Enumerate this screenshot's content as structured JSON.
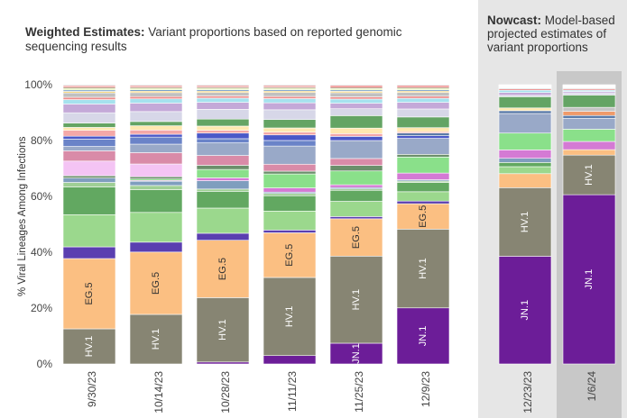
{
  "header": {
    "weighted_title_bold": "Weighted Estimates:",
    "weighted_title_rest": " Variant proportions based on reported genomic sequencing results",
    "nowcast_title_bold": "Nowcast:",
    "nowcast_title_rest": " Model-based projected estimates of variant proportions"
  },
  "colors": {
    "JN.1": "#6c1d98",
    "HV.1": "#878573",
    "EG.5": "#fbbf82",
    "nowcast_panel": "#e6e6e6",
    "selected_column": "#c8c8c8"
  },
  "chart_data": {
    "type": "bar",
    "stacked": true,
    "ylabel": "% Viral Lineages Among Infections",
    "ylim": [
      0,
      100
    ],
    "yticks": [
      "0%",
      "20%",
      "40%",
      "60%",
      "80%",
      "100%"
    ],
    "categories": [
      "9/30/23",
      "10/14/23",
      "10/28/23",
      "11/11/23",
      "11/25/23",
      "12/9/23",
      "12/23/23",
      "1/6/24"
    ],
    "nowcast_categories": [
      "12/23/23",
      "1/6/24"
    ],
    "selected_category": "1/6/24",
    "series": [
      {
        "name": "JN.1",
        "color": "#6c1d98",
        "values": [
          0,
          0,
          0.7,
          3,
          7.5,
          21,
          38.5,
          62
        ]
      },
      {
        "name": "HV.1",
        "color": "#878573",
        "values": [
          12,
          17.5,
          23,
          28,
          31.5,
          29.5,
          24.5,
          14.5
        ]
      },
      {
        "name": "EG.5",
        "color": "#fbbf82",
        "values": [
          24,
          22,
          20.5,
          16,
          13.5,
          9.5,
          5,
          2
        ]
      },
      {
        "color": "#5a3fb0",
        "values": [
          4,
          3.5,
          2.5,
          1,
          0.8,
          1,
          0,
          0
        ]
      },
      {
        "color": "#9bd88d",
        "values": [
          11,
          10.5,
          9,
          6.8,
          5.5,
          3.5,
          2.5,
          0
        ]
      },
      {
        "color": "#62a861",
        "values": [
          9.5,
          8,
          6,
          5.5,
          4,
          3.5,
          1.5,
          0
        ]
      },
      {
        "color": "#9fcf95",
        "values": [
          1.5,
          1.5,
          0.8,
          0.8,
          0.5,
          0.5,
          0,
          0
        ]
      },
      {
        "color": "#7f9ebe",
        "values": [
          1.5,
          1.5,
          3,
          0.5,
          0.5,
          0.5,
          1.5,
          0
        ]
      },
      {
        "color": "#d47ad4",
        "values": [
          0,
          0.3,
          1,
          1.5,
          1,
          2.5,
          3,
          3
        ]
      },
      {
        "color": "#8ae08a",
        "values": [
          0,
          0.5,
          3,
          5,
          5,
          6,
          6,
          4.5
        ]
      },
      {
        "color": "#6b8f6b",
        "values": [
          0.8,
          0.8,
          1.5,
          1,
          2,
          1,
          0,
          0
        ]
      },
      {
        "color": "#f4c4f4",
        "values": [
          5,
          4.5,
          0,
          0,
          0,
          0,
          0,
          0
        ]
      },
      {
        "color": "#d98ba8",
        "values": [
          3.5,
          4,
          3.5,
          2.5,
          2.5,
          0,
          0,
          0
        ]
      },
      {
        "color": "#99a9c8",
        "values": [
          1.5,
          3,
          4.5,
          6.5,
          6.5,
          6,
          7,
          4
        ]
      },
      {
        "color": "#6a83c8",
        "values": [
          2.5,
          2.5,
          1.5,
          2,
          0,
          0,
          0,
          0
        ]
      },
      {
        "color": "#4a58c8",
        "values": [
          1,
          1,
          2,
          2,
          1.5,
          1,
          0,
          0
        ]
      },
      {
        "color": "#5a7aa8",
        "values": [
          0,
          0,
          0,
          0,
          0,
          1,
          1,
          1
        ]
      },
      {
        "color": "#ef9a6a",
        "values": [
          0,
          0,
          0,
          0,
          0,
          0,
          0,
          1.5
        ]
      },
      {
        "color": "#f4a8a8",
        "values": [
          2,
          1.5,
          1,
          1,
          1,
          0.5,
          0,
          0
        ]
      },
      {
        "color": "#ffe8b0",
        "values": [
          1,
          1.5,
          1.5,
          1.5,
          2,
          1.5,
          1,
          0
        ]
      },
      {
        "color": "#c4c4c4",
        "values": [
          0,
          0,
          0,
          0,
          0,
          0,
          0,
          1.5
        ]
      },
      {
        "color": "#64a464",
        "values": [
          1.5,
          1.5,
          2.5,
          3,
          4.5,
          4,
          4,
          4.5
        ]
      },
      {
        "color": "#d7d7e8",
        "values": [
          3.5,
          3.5,
          3.5,
          3.5,
          2.5,
          3,
          0.5,
          0.8
        ]
      },
      {
        "color": "#c4a9d8",
        "values": [
          3,
          3,
          2.5,
          2.5,
          2,
          2.5,
          1,
          0.5
        ]
      },
      {
        "color": "#a6e2ee",
        "values": [
          1.5,
          1.5,
          1.5,
          1.5,
          1.5,
          1.5,
          0.8,
          0.5
        ]
      },
      {
        "color": "#ec8d8d",
        "values": [
          0.8,
          0.8,
          0.8,
          0.8,
          0.8,
          0.8,
          0.5,
          0.5
        ]
      },
      {
        "color": "#c0c0c0",
        "values": [
          1.5,
          1.4,
          1.2,
          1.4,
          1.5,
          1.4,
          0.3,
          0.3
        ]
      },
      {
        "color": "#f7d067",
        "values": [
          0.5,
          0.5,
          0.5,
          0.5,
          0.5,
          0.5,
          0.2,
          0.2
        ]
      },
      {
        "color": "#6e98c8",
        "values": [
          0.5,
          0.5,
          0.5,
          0.5,
          0.5,
          0.5,
          0.2,
          0.2
        ]
      },
      {
        "color": "#d7f0a3",
        "values": [
          0.5,
          0.5,
          0.5,
          0.5,
          0.5,
          0.5,
          0.2,
          0.2
        ]
      },
      {
        "color": "#b6a08a",
        "values": [
          0.5,
          0.5,
          0.5,
          0.5,
          0.5,
          0.5,
          0.2,
          0.2
        ]
      },
      {
        "color": "#e64040",
        "values": [
          0.4,
          0.4,
          0.4,
          0.4,
          0.5,
          0.5,
          0.2,
          0.2
        ]
      },
      {
        "color": "#e0e0e0",
        "values": [
          0.4,
          0.4,
          0.4,
          0.4,
          0.4,
          0.4,
          0.2,
          0.2
        ]
      }
    ],
    "labeled_series": [
      "JN.1",
      "HV.1",
      "EG.5"
    ],
    "bar_labels": [
      {
        "category": "9/30/23",
        "labels": [
          "HV.1",
          "EG.5"
        ]
      },
      {
        "category": "10/14/23",
        "labels": [
          "HV.1",
          "EG.5"
        ]
      },
      {
        "category": "10/28/23",
        "labels": [
          "HV.1",
          "EG.5"
        ]
      },
      {
        "category": "11/11/23",
        "labels": [
          "HV.1",
          "EG.5"
        ]
      },
      {
        "category": "11/25/23",
        "labels": [
          "JN.1",
          "HV.1",
          "EG.5"
        ]
      },
      {
        "category": "12/9/23",
        "labels": [
          "JN.1",
          "HV.1",
          "EG.5"
        ]
      },
      {
        "category": "12/23/23",
        "labels": [
          "JN.1",
          "HV.1"
        ]
      },
      {
        "category": "1/6/24",
        "labels": [
          "JN.1",
          "HV.1"
        ]
      }
    ]
  }
}
